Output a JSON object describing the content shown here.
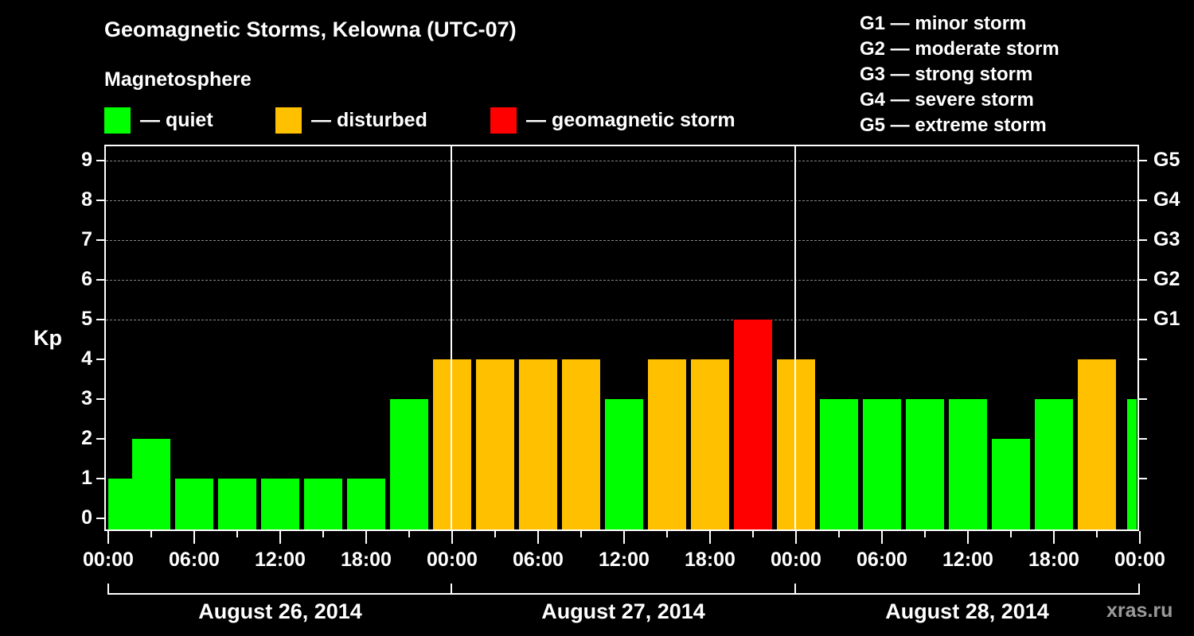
{
  "title": "Geomagnetic Storms, Kelowna (UTC-07)",
  "subtitle": "Magnetosphere",
  "legend": [
    {
      "label": "— quiet",
      "color": "#00ff00"
    },
    {
      "label": "— disturbed",
      "color": "#ffc000"
    },
    {
      "label": "— geomagnetic storm",
      "color": "#ff0000"
    }
  ],
  "g_legend": [
    "G1 — minor storm",
    "G2 — moderate storm",
    "G3 — strong storm",
    "G4 — severe storm",
    "G5 — extreme storm"
  ],
  "y_axis_label": "Kp",
  "y_ticks": [
    "0",
    "1",
    "2",
    "3",
    "4",
    "5",
    "6",
    "7",
    "8",
    "9"
  ],
  "g_ticks": [
    "G1",
    "G2",
    "G3",
    "G4",
    "G5"
  ],
  "x_ticks": [
    "00:00",
    "06:00",
    "12:00",
    "18:00",
    "00:00",
    "06:00",
    "12:00",
    "18:00",
    "00:00",
    "06:00",
    "12:00",
    "18:00",
    "00:00"
  ],
  "dates": [
    "August 26, 2014",
    "August 27, 2014",
    "August 28, 2014"
  ],
  "watermark": "xras.ru",
  "chart_data": {
    "type": "bar",
    "title": "Geomagnetic Storms, Kelowna (UTC-07)",
    "xlabel": "",
    "ylabel": "Kp",
    "ylim": [
      0,
      9
    ],
    "grid": "dashed horizontal at Kp 5-9",
    "legend_position": "top",
    "categories": [
      "Aug 26 00:00",
      "Aug 26 03:00",
      "Aug 26 06:00",
      "Aug 26 09:00",
      "Aug 26 12:00",
      "Aug 26 15:00",
      "Aug 26 18:00",
      "Aug 26 21:00",
      "Aug 27 00:00",
      "Aug 27 03:00",
      "Aug 27 06:00",
      "Aug 27 09:00",
      "Aug 27 12:00",
      "Aug 27 15:00",
      "Aug 27 18:00",
      "Aug 27 21:00",
      "Aug 28 00:00",
      "Aug 28 03:00",
      "Aug 28 06:00",
      "Aug 28 09:00",
      "Aug 28 12:00",
      "Aug 28 15:00",
      "Aug 28 18:00",
      "Aug 28 21:00",
      "Aug 29 00:00"
    ],
    "values": [
      1,
      2,
      1,
      1,
      1,
      1,
      1,
      3,
      4,
      4,
      4,
      4,
      3,
      4,
      4,
      5,
      4,
      3,
      3,
      3,
      3,
      2,
      3,
      4,
      3
    ],
    "status_colors": {
      "quiet": "#00ff00",
      "disturbed": "#ffc000",
      "storm": "#ff0000"
    },
    "storm_levels": {
      "G1": 5,
      "G2": 6,
      "G3": 7,
      "G4": 8,
      "G5": 9
    }
  }
}
